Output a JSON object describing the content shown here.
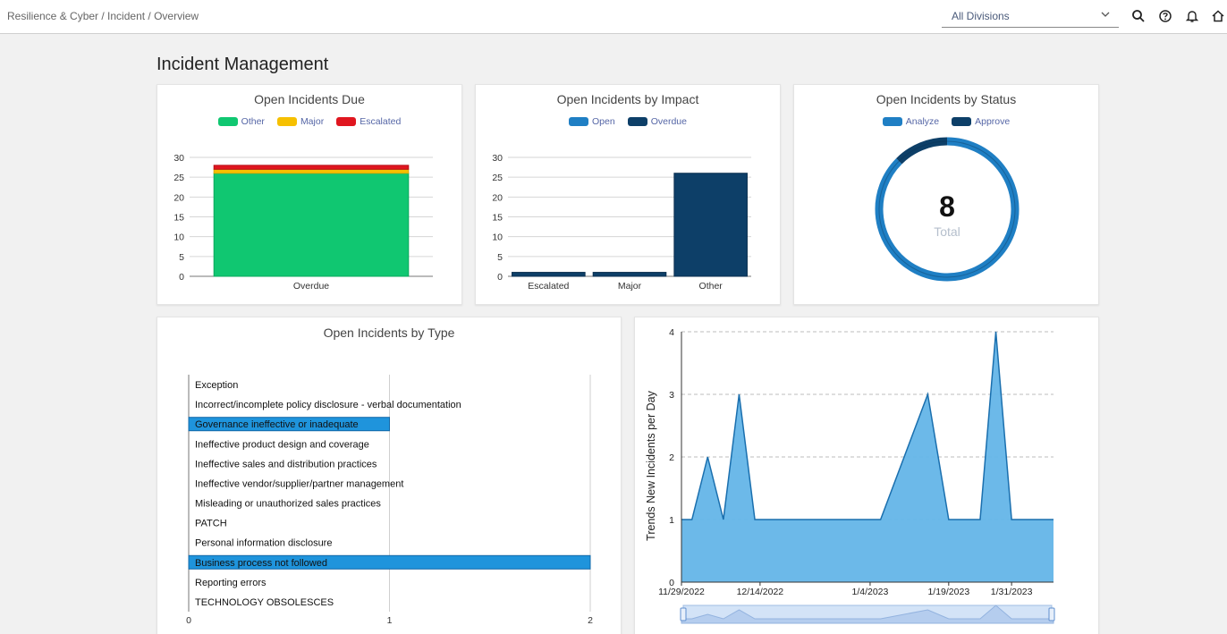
{
  "header": {
    "breadcrumb": "Resilience & Cyber / Incident / Overview",
    "division_value": "All Divisions",
    "icons": [
      "search-icon",
      "help-icon",
      "bell-icon",
      "home-icon"
    ]
  },
  "page": {
    "title": "Incident Management"
  },
  "charts": {
    "due": {
      "title": "Open Incidents Due",
      "legend": [
        {
          "label": "Other",
          "color": "#10c771"
        },
        {
          "label": "Major",
          "color": "#f6c000"
        },
        {
          "label": "Escalated",
          "color": "#e0161f"
        }
      ]
    },
    "impact": {
      "title": "Open Incidents by Impact",
      "legend": [
        {
          "label": "Open",
          "color": "#1f7fc4"
        },
        {
          "label": "Overdue",
          "color": "#0d3f68"
        }
      ]
    },
    "status": {
      "title": "Open Incidents by Status",
      "legend": [
        {
          "label": "Analyze",
          "color": "#1f7fc4"
        },
        {
          "label": "Approve",
          "color": "#0d3f68"
        }
      ],
      "total_value": "8",
      "total_label": "Total"
    },
    "type": {
      "title": "Open Incidents by Type"
    },
    "trend": {
      "ylabel": "Trends New Incidents per Day"
    }
  },
  "chart_data": [
    {
      "type": "bar",
      "title": "Open Incidents Due",
      "categories": [
        "Overdue"
      ],
      "stacked": true,
      "series": [
        {
          "name": "Other",
          "values": [
            26
          ]
        },
        {
          "name": "Major",
          "values": [
            1
          ]
        },
        {
          "name": "Escalated",
          "values": [
            1
          ]
        }
      ],
      "ylim": [
        0,
        30
      ],
      "yticks": [
        0,
        5,
        10,
        15,
        20,
        25,
        30
      ],
      "grid": true,
      "legend": "top"
    },
    {
      "type": "bar",
      "title": "Open Incidents by Impact",
      "categories": [
        "Escalated",
        "Major",
        "Other"
      ],
      "series": [
        {
          "name": "Open",
          "values": [
            0,
            0,
            0
          ]
        },
        {
          "name": "Overdue",
          "values": [
            1,
            1,
            26
          ]
        }
      ],
      "ylim": [
        0,
        30
      ],
      "yticks": [
        0,
        5,
        10,
        15,
        20,
        25,
        30
      ],
      "grid": true,
      "legend": "top"
    },
    {
      "type": "pie",
      "title": "Open Incidents by Status",
      "donut": true,
      "categories": [
        "Analyze",
        "Approve"
      ],
      "values": [
        7,
        1
      ],
      "legend": "top"
    },
    {
      "type": "bar",
      "title": "Open Incidents by Type",
      "orientation": "horizontal",
      "categories": [
        "Exception",
        "Incorrect/incomplete policy disclosure - verbal documentation",
        "Governance ineffective or inadequate",
        "Ineffective product design and coverage",
        "Ineffective sales and distribution practices",
        "Ineffective vendor/supplier/partner management",
        "Misleading or unauthorized sales practices",
        "PATCH",
        "Personal information disclosure",
        "Business process not followed",
        "Reporting errors",
        "TECHNOLOGY OBSOLESCES"
      ],
      "values": [
        0,
        0,
        1,
        0,
        0,
        0,
        0,
        0,
        0,
        2,
        0,
        0
      ],
      "xlim": [
        0,
        2
      ],
      "xticks": [
        0,
        1,
        2
      ],
      "grid": true
    },
    {
      "type": "area",
      "ylabel": "Trends New Incidents per Day",
      "x": [
        "11/29/2022",
        "12/1/2022",
        "12/4/2022",
        "12/7/2022",
        "12/10/2022",
        "12/13/2022",
        "12/16/2022",
        "1/6/2023",
        "1/15/2023",
        "1/19/2023",
        "1/22/2023",
        "1/25/2023",
        "1/28/2023",
        "1/31/2023",
        "2/8/2023"
      ],
      "values": [
        1,
        1,
        2,
        1,
        3,
        1,
        1,
        1,
        3,
        1,
        1,
        1,
        4,
        1,
        1
      ],
      "xtick_labels": [
        "11/29/2022",
        "12/14/2022",
        "1/4/2023",
        "1/19/2023",
        "1/31/2023"
      ],
      "ylim": [
        0,
        4
      ],
      "yticks": [
        0,
        1,
        2,
        3,
        4
      ],
      "grid": true,
      "range_selector": true,
      "color": "#64b5e8"
    }
  ]
}
